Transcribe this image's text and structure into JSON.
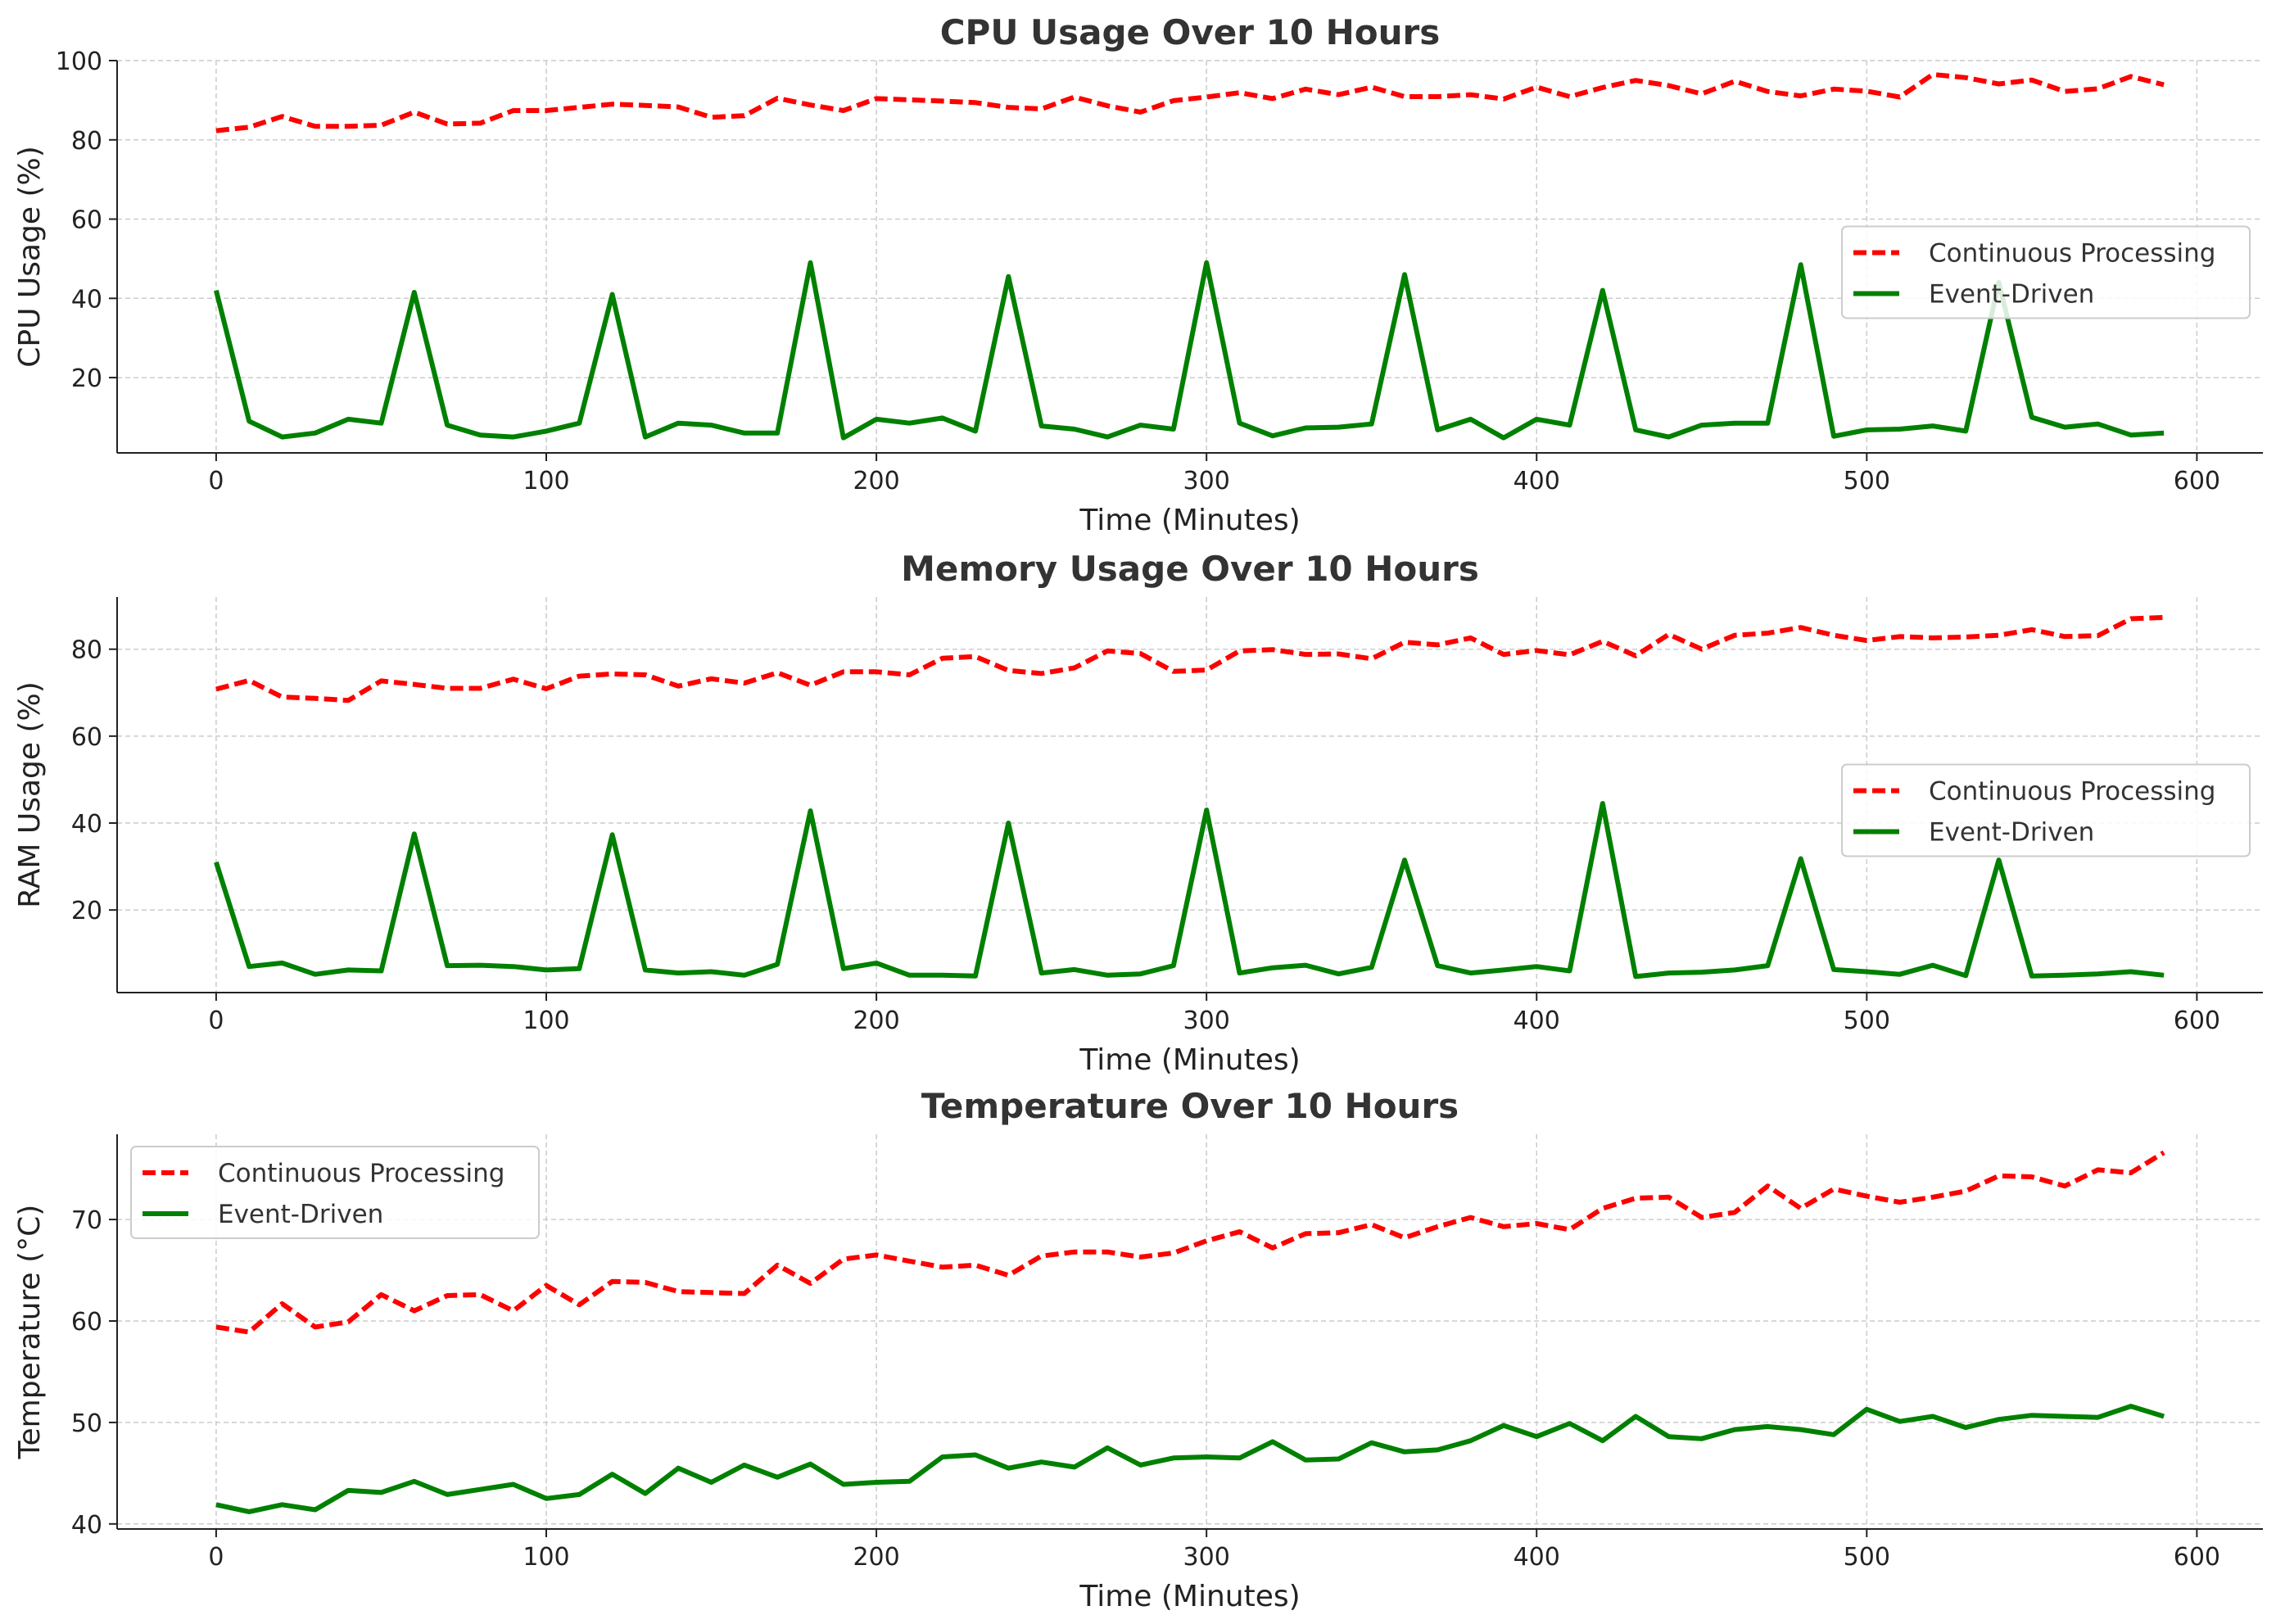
{
  "chart_data": [
    {
      "type": "line",
      "title": "CPU Usage Over 10 Hours",
      "xlabel": "Time (Minutes)",
      "ylabel": "CPU Usage (%)",
      "xlim": [
        -30,
        620
      ],
      "ylim": [
        1,
        100
      ],
      "xticks": [
        0,
        100,
        200,
        300,
        400,
        500,
        600
      ],
      "yticks": [
        20,
        40,
        60,
        80,
        100
      ],
      "grid": true,
      "legend": "center-right",
      "x": [
        0,
        10,
        20,
        30,
        40,
        50,
        60,
        70,
        80,
        90,
        100,
        110,
        120,
        130,
        140,
        150,
        160,
        170,
        180,
        190,
        200,
        210,
        220,
        230,
        240,
        250,
        260,
        270,
        280,
        290,
        300,
        310,
        320,
        330,
        340,
        350,
        360,
        370,
        380,
        390,
        400,
        410,
        420,
        430,
        440,
        450,
        460,
        470,
        480,
        490,
        500,
        510,
        520,
        530,
        540,
        550,
        560,
        570,
        580,
        590
      ],
      "series": [
        {
          "name": "Continuous Processing",
          "color": "#ff0000",
          "style": "dashed",
          "values": [
            82.3,
            83.2,
            85.9,
            83.4,
            83.4,
            83.7,
            87.0,
            84.0,
            84.2,
            87.4,
            87.4,
            88.2,
            89.0,
            88.7,
            88.3,
            85.7,
            86.1,
            90.5,
            88.8,
            87.4,
            90.4,
            90.1,
            89.8,
            89.4,
            88.2,
            87.8,
            90.8,
            88.6,
            87.0,
            89.9,
            90.8,
            91.9,
            90.4,
            92.8,
            91.4,
            93.3,
            90.9,
            90.9,
            91.4,
            90.3,
            93.3,
            90.9,
            93.2,
            95.0,
            93.7,
            91.6,
            94.8,
            92.2,
            91.1,
            92.8,
            92.3,
            90.8,
            96.5,
            95.7,
            94.1,
            95.1,
            92.2,
            92.9,
            96.0,
            93.9
          ]
        },
        {
          "name": "Event-Driven",
          "color": "#008000",
          "style": "solid",
          "values": [
            42.0,
            9.0,
            5.0,
            6.0,
            9.5,
            8.5,
            41.5,
            8.0,
            5.5,
            5.0,
            6.5,
            8.5,
            41.0,
            5.0,
            8.5,
            8.0,
            6.0,
            6.0,
            49.0,
            4.8,
            9.5,
            8.5,
            9.8,
            6.5,
            45.5,
            7.8,
            7.0,
            5.0,
            8.0,
            7.0,
            49.0,
            8.5,
            5.3,
            7.3,
            7.5,
            8.3,
            46.0,
            6.8,
            9.5,
            4.8,
            9.5,
            8.0,
            42.0,
            6.8,
            5.0,
            8.0,
            8.5,
            8.5,
            48.5,
            5.2,
            6.8,
            7.0,
            7.8,
            6.5,
            44.0,
            10.0,
            7.5,
            8.3,
            5.5,
            6.0
          ]
        }
      ]
    },
    {
      "type": "line",
      "title": "Memory Usage Over 10 Hours",
      "xlabel": "Time (Minutes)",
      "ylabel": "RAM Usage (%)",
      "xlim": [
        -30,
        620
      ],
      "ylim": [
        1,
        92
      ],
      "xticks": [
        0,
        100,
        200,
        300,
        400,
        500,
        600
      ],
      "yticks": [
        20,
        40,
        60,
        80
      ],
      "grid": true,
      "legend": "center-right",
      "x": [
        0,
        10,
        20,
        30,
        40,
        50,
        60,
        70,
        80,
        90,
        100,
        110,
        120,
        130,
        140,
        150,
        160,
        170,
        180,
        190,
        200,
        210,
        220,
        230,
        240,
        250,
        260,
        270,
        280,
        290,
        300,
        310,
        320,
        330,
        340,
        350,
        360,
        370,
        380,
        390,
        400,
        410,
        420,
        430,
        440,
        450,
        460,
        470,
        480,
        490,
        500,
        510,
        520,
        530,
        540,
        550,
        560,
        570,
        580,
        590
      ],
      "series": [
        {
          "name": "Continuous Processing",
          "color": "#ff0000",
          "style": "dashed",
          "values": [
            70.8,
            72.8,
            69.0,
            68.7,
            68.2,
            72.7,
            71.9,
            71.0,
            71.0,
            73.1,
            70.9,
            73.8,
            74.3,
            74.1,
            71.5,
            73.2,
            72.2,
            74.6,
            71.7,
            74.8,
            74.8,
            74.1,
            77.9,
            78.3,
            75.1,
            74.4,
            75.7,
            79.6,
            79.0,
            74.9,
            75.2,
            79.6,
            79.9,
            78.8,
            78.9,
            77.8,
            81.6,
            81.0,
            82.6,
            78.8,
            79.7,
            78.7,
            81.8,
            78.5,
            83.4,
            80.0,
            83.2,
            83.7,
            85.0,
            83.2,
            82.0,
            82.9,
            82.6,
            82.8,
            83.2,
            84.5,
            82.9,
            83.1,
            87.0,
            87.3
          ]
        },
        {
          "name": "Event-Driven",
          "color": "#008000",
          "style": "solid",
          "values": [
            31.0,
            7.0,
            7.8,
            5.2,
            6.2,
            6.0,
            37.5,
            7.2,
            7.3,
            7.0,
            6.2,
            6.5,
            37.3,
            6.2,
            5.5,
            5.8,
            5.0,
            7.5,
            42.8,
            6.5,
            7.8,
            5.0,
            5.0,
            4.8,
            40.0,
            5.5,
            6.3,
            5.0,
            5.3,
            7.2,
            43.0,
            5.5,
            6.7,
            7.3,
            5.3,
            6.8,
            31.5,
            7.2,
            5.5,
            6.2,
            7.0,
            6.0,
            44.5,
            4.7,
            5.5,
            5.7,
            6.2,
            7.2,
            31.8,
            6.3,
            5.8,
            5.2,
            7.3,
            4.9,
            31.5,
            4.8,
            5.0,
            5.3,
            5.8,
            5.0
          ]
        }
      ]
    },
    {
      "type": "line",
      "title": "Temperature Over 10 Hours",
      "xlabel": "Time (Minutes)",
      "ylabel": "Temperature (°C)",
      "xlim": [
        -30,
        620
      ],
      "ylim": [
        39.5,
        78.4
      ],
      "xticks": [
        0,
        100,
        200,
        300,
        400,
        500,
        600
      ],
      "yticks": [
        40,
        50,
        60,
        70
      ],
      "grid": true,
      "legend": "top-left",
      "x": [
        0,
        10,
        20,
        30,
        40,
        50,
        60,
        70,
        80,
        90,
        100,
        110,
        120,
        130,
        140,
        150,
        160,
        170,
        180,
        190,
        200,
        210,
        220,
        230,
        240,
        250,
        260,
        270,
        280,
        290,
        300,
        310,
        320,
        330,
        340,
        350,
        360,
        370,
        380,
        390,
        400,
        410,
        420,
        430,
        440,
        450,
        460,
        470,
        480,
        490,
        500,
        510,
        520,
        530,
        540,
        550,
        560,
        570,
        580,
        590
      ],
      "series": [
        {
          "name": "Continuous Processing",
          "color": "#ff0000",
          "style": "dashed",
          "values": [
            59.4,
            58.9,
            61.7,
            59.4,
            59.9,
            62.6,
            61.0,
            62.5,
            62.6,
            61.0,
            63.5,
            61.6,
            63.9,
            63.8,
            62.9,
            62.8,
            62.7,
            65.5,
            63.7,
            66.1,
            66.5,
            65.9,
            65.3,
            65.5,
            64.5,
            66.4,
            66.8,
            66.8,
            66.3,
            66.7,
            67.9,
            68.8,
            67.2,
            68.6,
            68.7,
            69.5,
            68.2,
            69.3,
            70.2,
            69.3,
            69.6,
            69.0,
            71.1,
            72.1,
            72.2,
            70.2,
            70.7,
            73.3,
            71.1,
            73.0,
            72.3,
            71.7,
            72.2,
            72.8,
            74.3,
            74.2,
            73.3,
            74.9,
            74.6,
            76.6
          ]
        },
        {
          "name": "Event-Driven",
          "color": "#008000",
          "style": "solid",
          "values": [
            41.9,
            41.2,
            41.9,
            41.4,
            43.3,
            43.1,
            44.2,
            42.9,
            43.4,
            43.9,
            42.5,
            42.9,
            44.9,
            43.0,
            45.5,
            44.1,
            45.8,
            44.6,
            45.9,
            43.9,
            44.1,
            44.2,
            46.6,
            46.8,
            45.5,
            46.1,
            45.6,
            47.5,
            45.8,
            46.5,
            46.6,
            46.5,
            48.1,
            46.3,
            46.4,
            48.0,
            47.1,
            47.3,
            48.2,
            49.7,
            48.6,
            49.9,
            48.2,
            50.6,
            48.6,
            48.4,
            49.3,
            49.6,
            49.3,
            48.8,
            51.3,
            50.1,
            50.6,
            49.5,
            50.3,
            50.7,
            50.6,
            50.5,
            51.6,
            50.6
          ]
        }
      ]
    }
  ]
}
